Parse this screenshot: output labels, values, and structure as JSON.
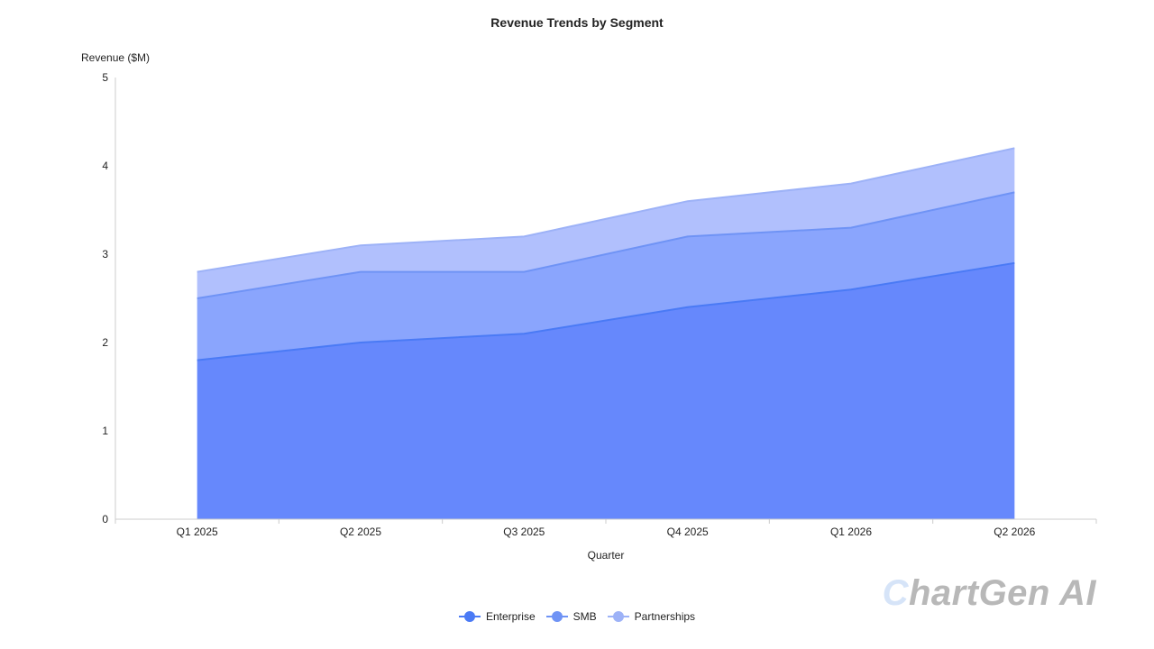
{
  "watermark": {
    "first_letter": "C",
    "rest": "hartGen AI"
  },
  "chart_data": {
    "type": "area",
    "stacked": true,
    "title": "Revenue Trends by Segment",
    "xlabel": "Quarter",
    "ylabel": "Revenue ($M)",
    "categories": [
      "Q1 2025",
      "Q2 2025",
      "Q3 2025",
      "Q4 2025",
      "Q1 2026",
      "Q2 2026"
    ],
    "ylim": [
      0,
      5
    ],
    "yticks": [
      0,
      1,
      2,
      3,
      4,
      5
    ],
    "grid": false,
    "legend_position": "bottom",
    "series": [
      {
        "name": "Enterprise",
        "values": [
          1.8,
          2.0,
          2.1,
          2.4,
          2.6,
          2.9
        ],
        "color": "#4a7af5",
        "fill": "#6688fc"
      },
      {
        "name": "SMB",
        "values": [
          0.7,
          0.8,
          0.7,
          0.8,
          0.7,
          0.8
        ],
        "color": "#6f93f5",
        "fill": "#8aa5fd"
      },
      {
        "name": "Partnerships",
        "values": [
          0.3,
          0.3,
          0.4,
          0.4,
          0.5,
          0.5
        ],
        "color": "#9db2f7",
        "fill": "#b1c0fd"
      }
    ]
  }
}
